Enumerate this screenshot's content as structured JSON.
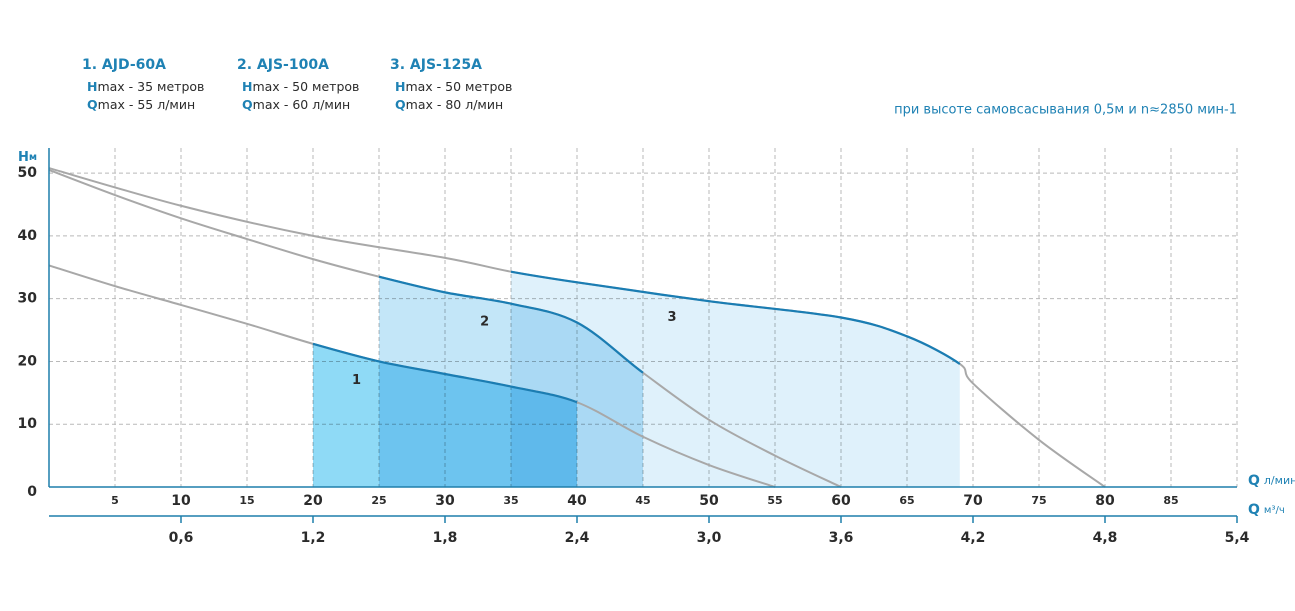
{
  "chart_data": {
    "type": "line",
    "note": "при высоте самовсасывания 0,5м и n≈2850 мин-1",
    "y_label": "H",
    "y_unit": "м",
    "x_label": "Q",
    "x_unit": "л/мин",
    "x2_label": "Q",
    "x2_unit": "м³/ч",
    "xlim": [
      0,
      90
    ],
    "xticks": [
      5,
      10,
      15,
      20,
      25,
      30,
      35,
      40,
      45,
      50,
      55,
      60,
      65,
      70,
      75,
      80,
      85
    ],
    "x2lim": [
      0,
      5.4
    ],
    "x2ticks": [
      {
        "value": 0.6,
        "label": "0,6"
      },
      {
        "value": 1.2,
        "label": "1,2"
      },
      {
        "value": 1.8,
        "label": "1,8"
      },
      {
        "value": 2.4,
        "label": "2,4"
      },
      {
        "value": 3.0,
        "label": "3,0"
      },
      {
        "value": 3.6,
        "label": "3,6"
      },
      {
        "value": 4.2,
        "label": "4,2"
      },
      {
        "value": 4.8,
        "label": "4,8"
      },
      {
        "value": 5.4,
        "label": "5,4"
      }
    ],
    "ylim": [
      0,
      54
    ],
    "yticks": [
      0,
      10,
      20,
      30,
      40,
      50
    ],
    "grid": true,
    "curve_color": "#a8a8a8",
    "series": [
      {
        "name": "1. AJD-60A",
        "label": "1",
        "color": "#1a7db3",
        "area_color": "#8fdaf6",
        "specs": [
          {
            "symbol": "H",
            "text": "max - 35 метров"
          },
          {
            "symbol": "Q",
            "text": "max - 55 л/мин"
          }
        ],
        "range": [
          20,
          40
        ],
        "x": [
          0,
          5,
          10,
          15,
          20,
          25,
          30,
          35,
          40,
          45,
          50,
          55
        ],
        "values": [
          35.3,
          32,
          29,
          26,
          22.8,
          20,
          18,
          16,
          13.5,
          8,
          3.5,
          0
        ]
      },
      {
        "name": "2. AJS-100A",
        "label": "2",
        "color": "#1a7db3",
        "area_color": "#c3e6f8",
        "specs": [
          {
            "symbol": "H",
            "text": "max - 50 метров"
          },
          {
            "symbol": "Q",
            "text": "max - 60 л/мин"
          }
        ],
        "range": [
          25,
          45
        ],
        "x": [
          0,
          5,
          10,
          15,
          20,
          25,
          30,
          35,
          40,
          45,
          50,
          55,
          60
        ],
        "values": [
          50.5,
          46.5,
          42.8,
          39.5,
          36.3,
          33.5,
          31,
          29.2,
          26.2,
          18.2,
          10.7,
          5,
          0
        ]
      },
      {
        "name": "3. AJS-125A",
        "label": "3",
        "color": "#1a7db3",
        "area_color": "#dff1fb",
        "specs": [
          {
            "symbol": "H",
            "text": "max - 50 метров"
          },
          {
            "symbol": "Q",
            "text": "max - 80 л/мин"
          }
        ],
        "range": [
          35,
          69
        ],
        "x": [
          0,
          10,
          20,
          30,
          35,
          40,
          50,
          60,
          65,
          69,
          70,
          75,
          80
        ],
        "values": [
          50.8,
          44.8,
          40,
          36.5,
          34.3,
          32.6,
          29.6,
          27,
          24,
          19.6,
          16.5,
          7.5,
          0
        ]
      }
    ]
  }
}
